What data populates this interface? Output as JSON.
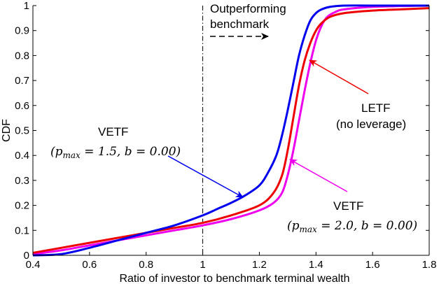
{
  "chart_data": {
    "type": "line",
    "xlabel": "Ratio of investor to benchmark terminal wealth",
    "ylabel": "CDF",
    "xlim": [
      0.4,
      1.8
    ],
    "ylim": [
      0,
      1
    ],
    "x_ticks": [
      "0.4",
      "0.6",
      "0.8",
      "1",
      "1.2",
      "1.4",
      "1.6",
      "1.8"
    ],
    "y_ticks": [
      "0",
      "0.1",
      "0.2",
      "0.3",
      "0.4",
      "0.5",
      "0.6",
      "0.7",
      "0.8",
      "0.9",
      "1"
    ],
    "grid": false,
    "reference_line_x": 1.0,
    "series": [
      {
        "color": "#0000ee",
        "x": [
          0.4,
          0.5,
          0.6,
          0.7,
          0.8,
          0.9,
          1.0,
          1.05,
          1.1,
          1.15,
          1.2,
          1.23,
          1.26,
          1.28,
          1.3,
          1.32,
          1.34,
          1.36,
          1.38,
          1.4,
          1.42,
          1.45,
          1.5,
          1.6,
          1.8
        ],
        "y": [
          0.0,
          0.005,
          0.03,
          0.06,
          0.09,
          0.12,
          0.16,
          0.185,
          0.21,
          0.24,
          0.28,
          0.33,
          0.4,
          0.48,
          0.58,
          0.69,
          0.8,
          0.88,
          0.94,
          0.97,
          0.985,
          0.995,
          1.0,
          1.0,
          1.0
        ]
      },
      {
        "color": "#ee0000",
        "x": [
          0.4,
          0.5,
          0.6,
          0.7,
          0.8,
          0.9,
          1.0,
          1.1,
          1.2,
          1.25,
          1.28,
          1.3,
          1.32,
          1.34,
          1.36,
          1.38,
          1.4,
          1.42,
          1.45,
          1.5,
          1.6,
          1.7,
          1.8
        ],
        "y": [
          0.01,
          0.03,
          0.05,
          0.07,
          0.09,
          0.11,
          0.13,
          0.16,
          0.2,
          0.25,
          0.32,
          0.42,
          0.55,
          0.68,
          0.78,
          0.85,
          0.9,
          0.93,
          0.955,
          0.97,
          0.98,
          0.985,
          0.99
        ]
      },
      {
        "color": "#ee00ee",
        "x": [
          0.4,
          0.5,
          0.6,
          0.7,
          0.8,
          0.9,
          1.0,
          1.1,
          1.2,
          1.25,
          1.28,
          1.3,
          1.32,
          1.34,
          1.36,
          1.38,
          1.4,
          1.42,
          1.44,
          1.47,
          1.5,
          1.6,
          1.8
        ],
        "y": [
          0.005,
          0.02,
          0.04,
          0.06,
          0.08,
          0.1,
          0.12,
          0.145,
          0.18,
          0.21,
          0.25,
          0.32,
          0.42,
          0.54,
          0.66,
          0.77,
          0.86,
          0.92,
          0.955,
          0.975,
          0.985,
          0.995,
          1.0
        ]
      }
    ]
  },
  "annotations": {
    "outperform_line1": "Outperforming",
    "outperform_line2": "benchmark",
    "vetf1_label": "VETF",
    "vetf1_params": "(p",
    "vetf1_sub": "max",
    "vetf1_rest": " = 1.5, b = 0.00)",
    "letf_label": "LETF",
    "letf_sub": "(no leverage)",
    "vetf2_label": "VETF",
    "vetf2_params": "(p",
    "vetf2_sub": "max",
    "vetf2_rest": " = 2.0, b = 0.00)"
  }
}
